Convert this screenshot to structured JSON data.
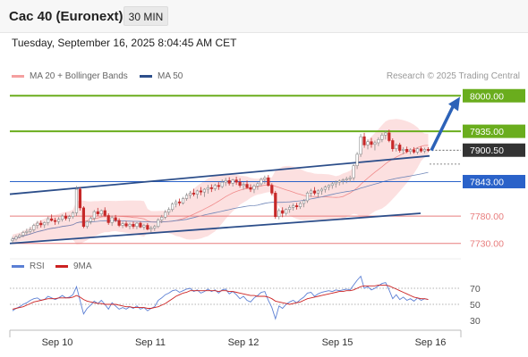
{
  "header": {
    "title": "Cac 40 (Euronext)",
    "timeframe": "30 MIN"
  },
  "datetime": "Tuesday, September 16, 2025 8:04:45 AM CET",
  "legend": {
    "ma_bb_label": "MA 20 + Bollinger Bands",
    "ma50_label": "MA 50",
    "rsi_label": "RSI",
    "ma9_label": "9MA"
  },
  "credit": "Research © 2025 Trading Central",
  "colors": {
    "target": "#6aad1d",
    "support": "#e87d7d",
    "pivot": "#2a62c9",
    "current": "#333333",
    "bollinger": "#fbd5d5",
    "ma50": "#2c4e8a",
    "candle_up": "#8a8a8a",
    "candle_down": "#c62828",
    "rsi": "#5b7fd4",
    "rsi_ma": "#cc2222"
  },
  "chart_data": {
    "type": "candlestick",
    "x_ticks": [
      "Sep 10",
      "Sep 11",
      "Sep 12",
      "Sep 15",
      "Sep 16"
    ],
    "y_range": [
      7710,
      8020
    ],
    "current_price": "7900.50",
    "levels": [
      {
        "label": "8000.00",
        "value": 8000,
        "kind": "target"
      },
      {
        "label": "7935.00",
        "value": 7935,
        "kind": "target"
      },
      {
        "label": "7843.00",
        "value": 7843,
        "kind": "pivot"
      },
      {
        "label": "7780.00",
        "value": 7780,
        "kind": "support"
      },
      {
        "label": "7730.00",
        "value": 7730,
        "kind": "support"
      }
    ],
    "candles": [
      [
        7735,
        7742,
        7731,
        7738
      ],
      [
        7738,
        7745,
        7735,
        7742
      ],
      [
        7742,
        7748,
        7739,
        7745
      ],
      [
        7745,
        7753,
        7741,
        7750
      ],
      [
        7750,
        7757,
        7746,
        7752
      ],
      [
        7752,
        7760,
        7748,
        7755
      ],
      [
        7755,
        7766,
        7751,
        7763
      ],
      [
        7763,
        7771,
        7757,
        7767
      ],
      [
        7767,
        7772,
        7759,
        7764
      ],
      [
        7764,
        7770,
        7758,
        7768
      ],
      [
        7768,
        7779,
        7763,
        7775
      ],
      [
        7775,
        7783,
        7770,
        7772
      ],
      [
        7772,
        7777,
        7764,
        7770
      ],
      [
        7770,
        7778,
        7765,
        7774
      ],
      [
        7774,
        7783,
        7770,
        7780
      ],
      [
        7780,
        7786,
        7772,
        7776
      ],
      [
        7776,
        7782,
        7770,
        7779
      ],
      [
        7779,
        7789,
        7775,
        7786
      ],
      [
        7786,
        7835,
        7780,
        7829
      ],
      [
        7829,
        7833,
        7790,
        7795
      ],
      [
        7795,
        7798,
        7758,
        7761
      ],
      [
        7761,
        7772,
        7757,
        7770
      ],
      [
        7770,
        7779,
        7765,
        7776
      ],
      [
        7776,
        7791,
        7771,
        7788
      ],
      [
        7788,
        7795,
        7780,
        7784
      ],
      [
        7784,
        7792,
        7779,
        7790
      ],
      [
        7790,
        7796,
        7778,
        7781
      ],
      [
        7781,
        7785,
        7764,
        7768
      ],
      [
        7768,
        7781,
        7762,
        7777
      ],
      [
        7777,
        7782,
        7769,
        7772
      ],
      [
        7772,
        7776,
        7760,
        7763
      ],
      [
        7763,
        7770,
        7758,
        7766
      ],
      [
        7766,
        7771,
        7759,
        7762
      ],
      [
        7762,
        7768,
        7756,
        7765
      ],
      [
        7765,
        7770,
        7757,
        7761
      ],
      [
        7761,
        7769,
        7756,
        7767
      ],
      [
        7767,
        7770,
        7758,
        7760
      ],
      [
        7760,
        7766,
        7755,
        7763
      ],
      [
        7763,
        7767,
        7754,
        7756
      ],
      [
        7756,
        7762,
        7750,
        7758
      ],
      [
        7758,
        7764,
        7753,
        7761
      ],
      [
        7761,
        7776,
        7758,
        7773
      ],
      [
        7773,
        7782,
        7767,
        7778
      ],
      [
        7778,
        7791,
        7774,
        7787
      ],
      [
        7787,
        7796,
        7782,
        7792
      ],
      [
        7792,
        7805,
        7788,
        7802
      ],
      [
        7802,
        7810,
        7796,
        7806
      ],
      [
        7806,
        7812,
        7799,
        7804
      ],
      [
        7804,
        7815,
        7801,
        7812
      ],
      [
        7812,
        7822,
        7808,
        7818
      ],
      [
        7818,
        7826,
        7812,
        7822
      ],
      [
        7822,
        7830,
        7816,
        7820
      ],
      [
        7820,
        7828,
        7812,
        7826
      ],
      [
        7826,
        7833,
        7818,
        7824
      ],
      [
        7824,
        7831,
        7815,
        7829
      ],
      [
        7829,
        7837,
        7821,
        7832
      ],
      [
        7832,
        7838,
        7824,
        7830
      ],
      [
        7830,
        7839,
        7826,
        7836
      ],
      [
        7836,
        7842,
        7828,
        7834
      ],
      [
        7834,
        7847,
        7831,
        7842
      ],
      [
        7842,
        7850,
        7835,
        7845
      ],
      [
        7845,
        7851,
        7836,
        7840
      ],
      [
        7840,
        7848,
        7834,
        7846
      ],
      [
        7846,
        7852,
        7837,
        7842
      ],
      [
        7842,
        7849,
        7832,
        7836
      ],
      [
        7836,
        7842,
        7828,
        7838
      ],
      [
        7838,
        7845,
        7830,
        7832
      ],
      [
        7832,
        7838,
        7824,
        7829
      ],
      [
        7829,
        7838,
        7822,
        7835
      ],
      [
        7835,
        7842,
        7828,
        7839
      ],
      [
        7839,
        7850,
        7835,
        7847
      ],
      [
        7847,
        7854,
        7839,
        7850
      ],
      [
        7850,
        7855,
        7834,
        7836
      ],
      [
        7836,
        7840,
        7818,
        7822
      ],
      [
        7822,
        7826,
        7775,
        7779
      ],
      [
        7779,
        7794,
        7774,
        7790
      ],
      [
        7790,
        7796,
        7778,
        7785
      ],
      [
        7785,
        7794,
        7781,
        7792
      ],
      [
        7792,
        7800,
        7786,
        7796
      ],
      [
        7796,
        7803,
        7790,
        7799
      ],
      [
        7799,
        7804,
        7792,
        7797
      ],
      [
        7797,
        7806,
        7793,
        7803
      ],
      [
        7803,
        7811,
        7796,
        7808
      ],
      [
        7808,
        7825,
        7804,
        7822
      ],
      [
        7822,
        7830,
        7815,
        7826
      ],
      [
        7826,
        7833,
        7818,
        7822
      ],
      [
        7822,
        7829,
        7814,
        7826
      ],
      [
        7826,
        7832,
        7819,
        7829
      ],
      [
        7829,
        7836,
        7823,
        7833
      ],
      [
        7833,
        7838,
        7827,
        7836
      ],
      [
        7836,
        7843,
        7830,
        7839
      ],
      [
        7839,
        7845,
        7832,
        7842
      ],
      [
        7842,
        7847,
        7836,
        7844
      ],
      [
        7844,
        7849,
        7838,
        7846
      ],
      [
        7846,
        7852,
        7840,
        7848
      ],
      [
        7848,
        7854,
        7842,
        7850
      ],
      [
        7850,
        7875,
        7845,
        7872
      ],
      [
        7872,
        7897,
        7866,
        7893
      ],
      [
        7893,
        7930,
        7888,
        7925
      ],
      [
        7925,
        7932,
        7905,
        7910
      ],
      [
        7910,
        7920,
        7902,
        7916
      ],
      [
        7916,
        7923,
        7905,
        7911
      ],
      [
        7911,
        7918,
        7900,
        7914
      ],
      [
        7914,
        7924,
        7908,
        7920
      ],
      [
        7920,
        7932,
        7915,
        7928
      ],
      [
        7928,
        7936,
        7920,
        7932
      ],
      [
        7932,
        7938,
        7915,
        7918
      ],
      [
        7918,
        7922,
        7898,
        7903
      ],
      [
        7903,
        7913,
        7898,
        7910
      ],
      [
        7910,
        7914,
        7896,
        7900
      ],
      [
        7900,
        7906,
        7893,
        7902
      ],
      [
        7902,
        7907,
        7895,
        7898
      ],
      [
        7898,
        7904,
        7893,
        7901
      ],
      [
        7901,
        7906,
        7894,
        7897
      ],
      [
        7897,
        7905,
        7893,
        7903
      ],
      [
        7903,
        7907,
        7896,
        7899
      ],
      [
        7899,
        7905,
        7895,
        7902
      ],
      [
        7902,
        7906,
        7897,
        7900
      ]
    ],
    "rsi_levels": [
      70,
      50,
      30
    ],
    "rsi": [
      42,
      45,
      47,
      50,
      52,
      55,
      57,
      58,
      55,
      56,
      60,
      58,
      56,
      58,
      61,
      58,
      59,
      62,
      72,
      55,
      38,
      45,
      49,
      54,
      51,
      55,
      50,
      44,
      52,
      48,
      44,
      46,
      44,
      47,
      45,
      48,
      44,
      46,
      42,
      45,
      47,
      55,
      58,
      62,
      64,
      67,
      68,
      65,
      67,
      69,
      70,
      66,
      68,
      64,
      66,
      69,
      66,
      68,
      64,
      68,
      69,
      63,
      66,
      62,
      57,
      60,
      55,
      53,
      58,
      61,
      65,
      66,
      55,
      46,
      32,
      48,
      45,
      50,
      53,
      55,
      52,
      56,
      59,
      64,
      65,
      60,
      63,
      65,
      66,
      67,
      66,
      68,
      67,
      68,
      69,
      68,
      74,
      80,
      85,
      70,
      72,
      68,
      70,
      73,
      76,
      77,
      68,
      57,
      62,
      56,
      59,
      55,
      57,
      54,
      58,
      55,
      57,
      56
    ],
    "rsi_ma": [
      44,
      45,
      46,
      47,
      49,
      51,
      53,
      54,
      55,
      56,
      57,
      57,
      57,
      58,
      58,
      58,
      58,
      59,
      61,
      59,
      56,
      54,
      53,
      52,
      51,
      51,
      50,
      50,
      50,
      50,
      49,
      48,
      47,
      47,
      46,
      46,
      46,
      46,
      45,
      45,
      46,
      47,
      49,
      51,
      54,
      57,
      60,
      62,
      64,
      65,
      67,
      67,
      67,
      67,
      67,
      67,
      67,
      67,
      66,
      67,
      67,
      66,
      66,
      65,
      64,
      63,
      62,
      61,
      61,
      60,
      60,
      60,
      59,
      57,
      54,
      53,
      52,
      51,
      50,
      51,
      52,
      53,
      55,
      57,
      58,
      59,
      60,
      61,
      62,
      63,
      64,
      65,
      66,
      66,
      67,
      67,
      68,
      70,
      72,
      73,
      73,
      73,
      73,
      74,
      74,
      74,
      73,
      71,
      69,
      67,
      65,
      63,
      61,
      59,
      58,
      57,
      57,
      56
    ]
  }
}
